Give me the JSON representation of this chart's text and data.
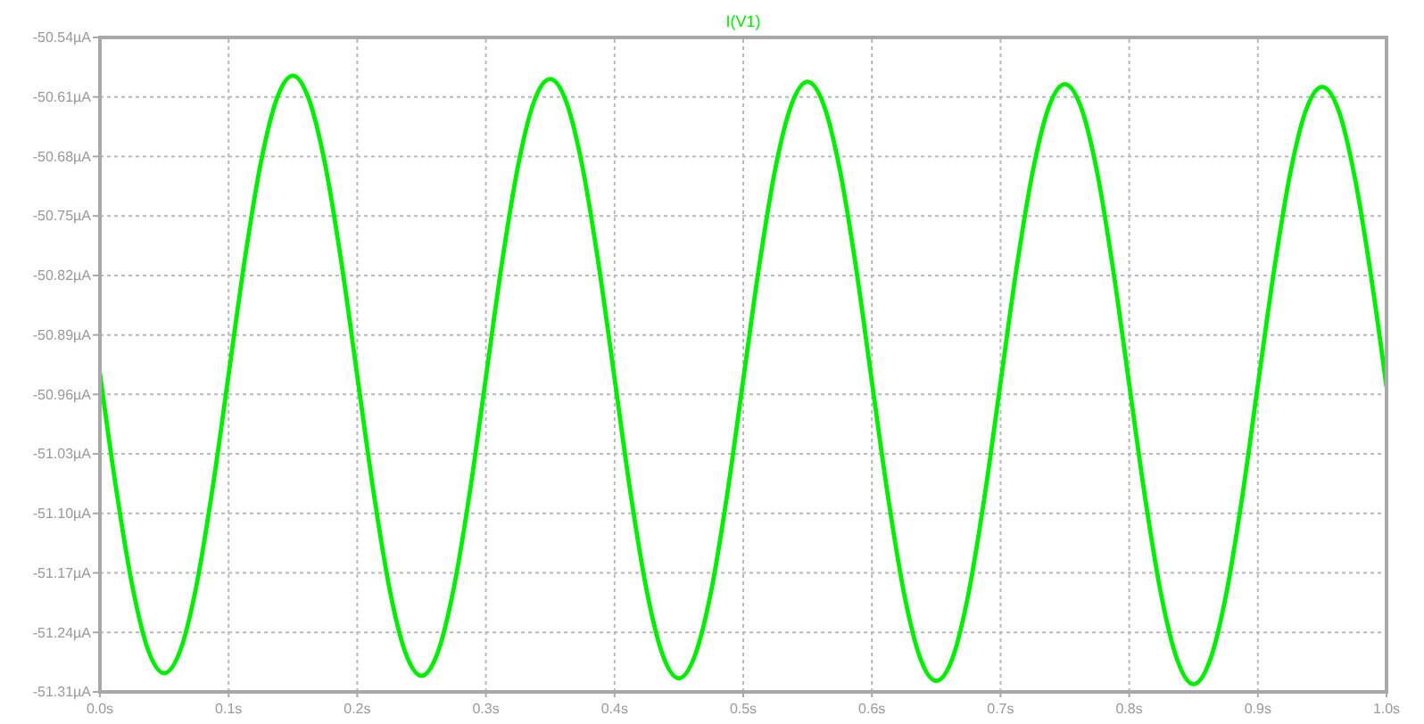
{
  "chart_data": {
    "type": "line",
    "legend": "top",
    "grid": true,
    "marker": "none",
    "line_style": "solid",
    "x": [
      0,
      0.0125,
      0.025,
      0.0375,
      0.05,
      0.0625,
      0.075,
      0.0875,
      0.1,
      0.1125,
      0.125,
      0.1375,
      0.15,
      0.1625,
      0.175,
      0.1875,
      0.2,
      0.2125,
      0.225,
      0.2375,
      0.25,
      0.2625,
      0.275,
      0.2875,
      0.3,
      0.3125,
      0.325,
      0.3375,
      0.35,
      0.3625,
      0.375,
      0.3875,
      0.4,
      0.4125,
      0.425,
      0.4375,
      0.45,
      0.4625,
      0.475,
      0.4875,
      0.5,
      0.5125,
      0.525,
      0.5375,
      0.55,
      0.5625,
      0.575,
      0.5875,
      0.6,
      0.6125,
      0.625,
      0.6375,
      0.65,
      0.6625,
      0.675,
      0.6875,
      0.7,
      0.7125,
      0.725,
      0.7375,
      0.75,
      0.7625,
      0.775,
      0.7875,
      0.8,
      0.8125,
      0.825,
      0.8375,
      0.85,
      0.8625,
      0.875,
      0.8875,
      0.9,
      0.9125,
      0.925,
      0.9375,
      0.95,
      0.9625,
      0.975,
      0.9875,
      1.0
    ],
    "series": [
      {
        "name": "I(V1)",
        "color": "#00ee00",
        "values": [
          -50.935,
          -51.07,
          -51.184,
          -51.261,
          -51.288,
          -51.261,
          -51.185,
          -51.071,
          -50.937,
          -50.802,
          -50.688,
          -50.612,
          -50.585,
          -50.613,
          -50.689,
          -50.803,
          -50.938,
          -51.073,
          -51.188,
          -51.264,
          -51.291,
          -51.264,
          -51.188,
          -51.075,
          -50.94,
          -50.805,
          -50.691,
          -50.615,
          -50.589,
          -50.616,
          -50.692,
          -50.806,
          -50.941,
          -51.077,
          -51.191,
          -51.267,
          -51.294,
          -51.267,
          -51.192,
          -51.078,
          -50.943,
          -50.808,
          -50.694,
          -50.619,
          -50.592,
          -50.619,
          -50.695,
          -50.809,
          -50.945,
          -51.08,
          -51.194,
          -51.27,
          -51.297,
          -51.271,
          -51.195,
          -51.081,
          -50.946,
          -50.811,
          -50.698,
          -50.622,
          -50.595,
          -50.622,
          -50.698,
          -50.813,
          -50.948,
          -51.083,
          -51.197,
          -51.273,
          -51.301,
          -51.274,
          -51.198,
          -51.084,
          -50.949,
          -50.815,
          -50.701,
          -50.625,
          -50.598,
          -50.625,
          -50.702,
          -50.816,
          -50.951
        ]
      }
    ],
    "xlim": [
      0,
      1.0
    ],
    "xticks": [
      {
        "value": 0,
        "label": "0.0s"
      },
      {
        "value": 0.1,
        "label": "0.1s"
      },
      {
        "value": 0.2,
        "label": "0.2s"
      },
      {
        "value": 0.3,
        "label": "0.3s"
      },
      {
        "value": 0.4,
        "label": "0.4s"
      },
      {
        "value": 0.5,
        "label": "0.5s"
      },
      {
        "value": 0.6,
        "label": "0.6s"
      },
      {
        "value": 0.7,
        "label": "0.7s"
      },
      {
        "value": 0.8,
        "label": "0.8s"
      },
      {
        "value": 0.9,
        "label": "0.9s"
      },
      {
        "value": 1.0,
        "label": "1.0s"
      }
    ],
    "ylim": [
      -51.31,
      -50.54
    ],
    "yticks": [
      {
        "value": -51.31,
        "label": "-51.31µA"
      },
      {
        "value": -51.24,
        "label": "-51.24µA"
      },
      {
        "value": -51.17,
        "label": "-51.17µA"
      },
      {
        "value": -51.1,
        "label": "-51.10µA"
      },
      {
        "value": -51.03,
        "label": "-51.03µA"
      },
      {
        "value": -50.96,
        "label": "-50.96µA"
      },
      {
        "value": -50.89,
        "label": "-50.89µA"
      },
      {
        "value": -50.82,
        "label": "-50.82µA"
      },
      {
        "value": -50.75,
        "label": "-50.75µA"
      },
      {
        "value": -50.68,
        "label": "-50.68µA"
      },
      {
        "value": -50.61,
        "label": "-50.61µA"
      },
      {
        "value": -50.54,
        "label": "-50.54µA"
      }
    ]
  }
}
